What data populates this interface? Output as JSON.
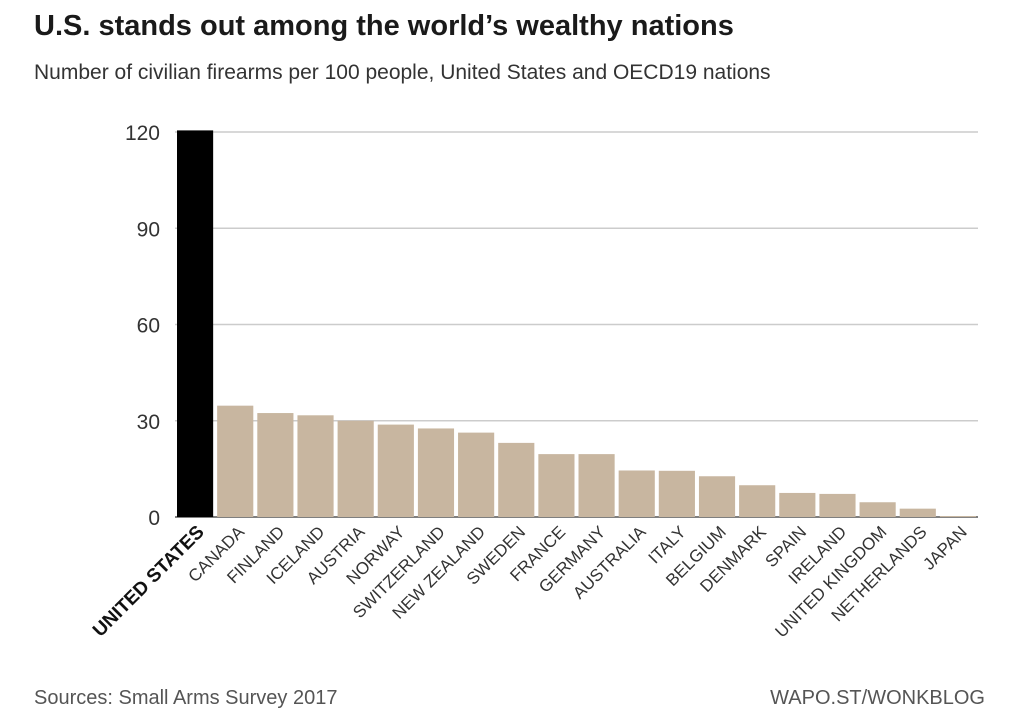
{
  "chart_data": {
    "type": "bar",
    "title": "U.S. stands out among the world’s wealthy nations",
    "subtitle": "Number of civilian firearms per 100 people, United States and OECD19 nations",
    "categories": [
      "UNITED STATES",
      "CANADA",
      "FINLAND",
      "ICELAND",
      "AUSTRIA",
      "NORWAY",
      "SWITZERLAND",
      "NEW ZEALAND",
      "SWEDEN",
      "FRANCE",
      "GERMANY",
      "AUSTRALIA",
      "ITALY",
      "BELGIUM",
      "DENMARK",
      "SPAIN",
      "IRELAND",
      "UNITED KINGDOM",
      "NETHERLANDS",
      "JAPAN"
    ],
    "values": [
      120.5,
      34.7,
      32.4,
      31.7,
      30.0,
      28.8,
      27.6,
      26.3,
      23.1,
      19.6,
      19.6,
      14.5,
      14.4,
      12.7,
      9.9,
      7.5,
      7.2,
      4.6,
      2.6,
      0.3
    ],
    "highlight": "UNITED STATES",
    "yticks": [
      0,
      30,
      60,
      90,
      120
    ],
    "ylim": [
      0,
      120
    ],
    "grid": true,
    "colors": {
      "highlight": "#000000",
      "bar": "#c8b6a0",
      "grid": "#cccccc",
      "axis": "#555555"
    }
  },
  "footer": {
    "source": "Sources: Small Arms Survey 2017",
    "credit": "WAPO.ST/WONKBLOG"
  }
}
